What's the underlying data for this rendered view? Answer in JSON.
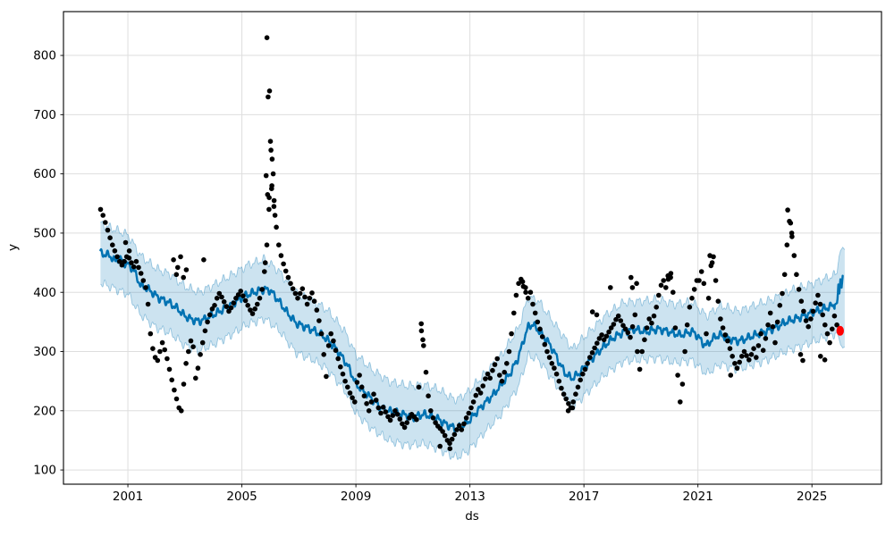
{
  "chart_data": {
    "type": "scatter+line+band (time-series forecast)",
    "title": "",
    "xlabel": "ds",
    "ylabel": "y",
    "grid": true,
    "legend": "none",
    "axes": {
      "xlim": [
        1998.74,
        2027.44
      ],
      "ylim": [
        76,
        874
      ],
      "xticks": [
        2001,
        2005,
        2009,
        2013,
        2017,
        2021,
        2025
      ],
      "xtick_labels": [
        "2001",
        "2005",
        "2009",
        "2013",
        "2017",
        "2021",
        "2025"
      ],
      "yticks": [
        100,
        200,
        300,
        400,
        500,
        600,
        700,
        800
      ],
      "ytick_labels": [
        "100",
        "200",
        "300",
        "400",
        "500",
        "600",
        "700",
        "800"
      ]
    },
    "colors": {
      "observed_points": "#000000",
      "forecast_line": "#0072B2",
      "interval_fill": "#0072B2",
      "interval_fill_opacity": 0.2,
      "interval_edge_opacity": 0.35,
      "latest_point": "#ff0000",
      "grid": "#dedede",
      "spine": "#000000",
      "tick_label": "#000000",
      "background": "#ffffff"
    },
    "observed_monthly": {
      "first_year": 2000,
      "values_by_year": [
        [
          540,
          530,
          518,
          505,
          492,
          480,
          470,
          460,
          452,
          446,
          452,
          460
        ],
        [
          458,
          450,
          443,
          452,
          442,
          432,
          420,
          408,
          380,
          330,
          305,
          290
        ],
        [
          285,
          300,
          315,
          303,
          288,
          270,
          252,
          235,
          220,
          205,
          200,
          245
        ],
        [
          280,
          300,
          318,
          308,
          255,
          272,
          295,
          315,
          335,
          350,
          362,
          372
        ],
        [
          378,
          390,
          398,
          392,
          384,
          376,
          368,
          374,
          382,
          390,
          396,
          402
        ],
        [
          394,
          386,
          378,
          370,
          364,
          372,
          380,
          390,
          405,
          435,
          480,
          560
        ],
        [
          575,
          545,
          510,
          480,
          462,
          448,
          436,
          425,
          415,
          406,
          398,
          390
        ],
        [
          398,
          406,
          392,
          380,
          390,
          399,
          385,
          370,
          352,
          330,
          295,
          258
        ],
        [
          310,
          330,
          318,
          302,
          288,
          274,
          262,
          250,
          240,
          230,
          222,
          215
        ],
        [
          248,
          260,
          240,
          225,
          212,
          200,
          215,
          228,
          218,
          205,
          196,
          206
        ],
        [
          198,
          190,
          184,
          192,
          200,
          194,
          186,
          178,
          172,
          180,
          188,
          194
        ],
        [
          190,
          185,
          240,
          347,
          310,
          265,
          225,
          200,
          188,
          180,
          174,
          170
        ],
        [
          165,
          158,
          150,
          145,
          152,
          160,
          168,
          175,
          168,
          178,
          188,
          196
        ],
        [
          205,
          215,
          226,
          236,
          230,
          242,
          254,
          262,
          255,
          268,
          278,
          288
        ],
        [
          260,
          250,
          265,
          280,
          300,
          330,
          365,
          395,
          415,
          422,
          410,
          400
        ],
        [
          390,
          400,
          380,
          365,
          350,
          338,
          325,
          312,
          300,
          290,
          280,
          272
        ],
        [
          262,
          250,
          238,
          228,
          220,
          212,
          205,
          215,
          228,
          240,
          252,
          262
        ],
        [
          270,
          280,
          290,
          298,
          306,
          314,
          322,
          328,
          320,
          326,
          333,
          340
        ],
        [
          346,
          354,
          360,
          352,
          344,
          338,
          332,
          324,
          342,
          362,
          300,
          270
        ],
        [
          300,
          320,
          340,
          355,
          348,
          360,
          375,
          395,
          412,
          420,
          408,
          422
        ],
        [
          425,
          400,
          340,
          260,
          215,
          245,
          300,
          345,
          375,
          390,
          405,
          420
        ],
        [
          420,
          435,
          415,
          330,
          390,
          445,
          460,
          420,
          385,
          355,
          340,
          328
        ],
        [
          318,
          305,
          292,
          280,
          272,
          282,
          292,
          300,
          293,
          286,
          295,
          305
        ],
        [
          290,
          310,
          330,
          302,
          322,
          345,
          365,
          342,
          315,
          350,
          378,
          398
        ],
        [
          430,
          480,
          520,
          500,
          462,
          430,
          405,
          385,
          368,
          352,
          342,
          355
        ],
        [
          368,
          382,
          395,
          380,
          362,
          345,
          330,
          315,
          338,
          360,
          345,
          336
        ]
      ]
    },
    "observed_outliers": [
      [
        2000.92,
        484
      ],
      [
        2001.05,
        470
      ],
      [
        2002.6,
        455
      ],
      [
        2002.7,
        430
      ],
      [
        2002.75,
        442
      ],
      [
        2002.85,
        460
      ],
      [
        2002.95,
        425
      ],
      [
        2003.05,
        438
      ],
      [
        2003.66,
        455
      ],
      [
        2005.82,
        450
      ],
      [
        2005.85,
        597
      ],
      [
        2005.88,
        830
      ],
      [
        2005.9,
        565
      ],
      [
        2005.92,
        730
      ],
      [
        2005.95,
        540
      ],
      [
        2005.97,
        740
      ],
      [
        2006.0,
        655
      ],
      [
        2006.02,
        640
      ],
      [
        2006.05,
        580
      ],
      [
        2006.06,
        625
      ],
      [
        2006.1,
        600
      ],
      [
        2006.13,
        555
      ],
      [
        2006.16,
        530
      ],
      [
        2011.3,
        335
      ],
      [
        2011.35,
        320
      ],
      [
        2011.95,
        140
      ],
      [
        2012.3,
        136
      ],
      [
        2014.85,
        418
      ],
      [
        2014.95,
        408
      ],
      [
        2016.45,
        200
      ],
      [
        2016.6,
        205
      ],
      [
        2017.3,
        367
      ],
      [
        2017.45,
        362
      ],
      [
        2017.93,
        408
      ],
      [
        2018.65,
        425
      ],
      [
        2018.7,
        408
      ],
      [
        2018.85,
        415
      ],
      [
        2019.95,
        428
      ],
      [
        2020.05,
        432
      ],
      [
        2021.42,
        462
      ],
      [
        2021.5,
        450
      ],
      [
        2022.15,
        260
      ],
      [
        2024.15,
        539
      ],
      [
        2024.25,
        517
      ],
      [
        2024.3,
        494
      ],
      [
        2024.6,
        295
      ],
      [
        2024.68,
        285
      ],
      [
        2025.3,
        292
      ],
      [
        2025.45,
        286
      ]
    ],
    "latest_actual_point": {
      "x": 2025.99,
      "y": 335
    },
    "forecast_line": [
      [
        2000.04,
        466
      ],
      [
        2000.37,
        462
      ],
      [
        2000.55,
        452
      ],
      [
        2000.7,
        458
      ],
      [
        2000.85,
        450
      ],
      [
        2001.0,
        447
      ],
      [
        2001.2,
        438
      ],
      [
        2001.45,
        411
      ],
      [
        2001.7,
        406
      ],
      [
        2001.9,
        398
      ],
      [
        2002.1,
        390
      ],
      [
        2002.3,
        386
      ],
      [
        2002.5,
        381
      ],
      [
        2002.75,
        372
      ],
      [
        2003.0,
        360
      ],
      [
        2003.25,
        354
      ],
      [
        2003.5,
        351
      ],
      [
        2003.75,
        356
      ],
      [
        2004.0,
        362
      ],
      [
        2004.3,
        370
      ],
      [
        2004.6,
        378
      ],
      [
        2004.9,
        388
      ],
      [
        2005.2,
        396
      ],
      [
        2005.5,
        401
      ],
      [
        2005.8,
        405
      ],
      [
        2006.0,
        403
      ],
      [
        2006.3,
        385
      ],
      [
        2006.6,
        365
      ],
      [
        2006.9,
        348
      ],
      [
        2007.2,
        342
      ],
      [
        2007.5,
        336
      ],
      [
        2007.8,
        328
      ],
      [
        2008.0,
        320
      ],
      [
        2008.3,
        305
      ],
      [
        2008.6,
        285
      ],
      [
        2008.8,
        268
      ],
      [
        2009.0,
        245
      ],
      [
        2009.3,
        232
      ],
      [
        2009.6,
        218
      ],
      [
        2009.9,
        204
      ],
      [
        2010.2,
        199
      ],
      [
        2010.5,
        196
      ],
      [
        2010.8,
        192
      ],
      [
        2011.0,
        189
      ],
      [
        2011.2,
        192
      ],
      [
        2011.4,
        194
      ],
      [
        2011.6,
        191
      ],
      [
        2011.9,
        186
      ],
      [
        2012.1,
        179
      ],
      [
        2012.35,
        173
      ],
      [
        2012.55,
        170
      ],
      [
        2012.75,
        175
      ],
      [
        2012.95,
        182
      ],
      [
        2013.2,
        196
      ],
      [
        2013.5,
        212
      ],
      [
        2013.8,
        226
      ],
      [
        2014.1,
        244
      ],
      [
        2014.4,
        262
      ],
      [
        2014.7,
        290
      ],
      [
        2014.9,
        322
      ],
      [
        2015.05,
        342
      ],
      [
        2015.2,
        346
      ],
      [
        2015.4,
        336
      ],
      [
        2015.6,
        325
      ],
      [
        2015.8,
        312
      ],
      [
        2016.0,
        295
      ],
      [
        2016.2,
        275
      ],
      [
        2016.4,
        260
      ],
      [
        2016.6,
        255
      ],
      [
        2016.8,
        262
      ],
      [
        2017.0,
        272
      ],
      [
        2017.2,
        284
      ],
      [
        2017.4,
        294
      ],
      [
        2017.6,
        304
      ],
      [
        2017.8,
        313
      ],
      [
        2018.0,
        322
      ],
      [
        2018.2,
        328
      ],
      [
        2018.4,
        333
      ],
      [
        2018.6,
        336
      ],
      [
        2018.8,
        338
      ],
      [
        2019.0,
        335
      ],
      [
        2019.2,
        333
      ],
      [
        2019.4,
        336
      ],
      [
        2019.6,
        338
      ],
      [
        2019.8,
        336
      ],
      [
        2020.0,
        333
      ],
      [
        2020.2,
        330
      ],
      [
        2020.4,
        328
      ],
      [
        2020.6,
        331
      ],
      [
        2020.8,
        334
      ],
      [
        2021.0,
        326
      ],
      [
        2021.15,
        315
      ],
      [
        2021.3,
        310
      ],
      [
        2021.45,
        318
      ],
      [
        2021.6,
        325
      ],
      [
        2021.8,
        328
      ],
      [
        2022.0,
        324
      ],
      [
        2022.2,
        320
      ],
      [
        2022.4,
        318
      ],
      [
        2022.6,
        320
      ],
      [
        2022.8,
        324
      ],
      [
        2023.0,
        328
      ],
      [
        2023.2,
        331
      ],
      [
        2023.4,
        334
      ],
      [
        2023.6,
        338
      ],
      [
        2023.8,
        342
      ],
      [
        2024.0,
        348
      ],
      [
        2024.2,
        352
      ],
      [
        2024.4,
        355
      ],
      [
        2024.6,
        358
      ],
      [
        2024.8,
        361
      ],
      [
        2025.0,
        366
      ],
      [
        2025.2,
        369
      ],
      [
        2025.4,
        372
      ],
      [
        2025.6,
        375
      ],
      [
        2025.8,
        379
      ],
      [
        2025.88,
        382
      ],
      [
        2025.9,
        390
      ],
      [
        2025.93,
        415
      ],
      [
        2025.96,
        398
      ],
      [
        2026.0,
        422
      ],
      [
        2026.04,
        408
      ],
      [
        2026.08,
        428
      ]
    ],
    "interval_upper": [
      [
        2000.04,
        516
      ],
      [
        2001.0,
        497
      ],
      [
        2001.45,
        462
      ],
      [
        2002.0,
        440
      ],
      [
        2002.5,
        430
      ],
      [
        2003.0,
        410
      ],
      [
        2003.5,
        400
      ],
      [
        2004.0,
        412
      ],
      [
        2004.6,
        428
      ],
      [
        2005.2,
        446
      ],
      [
        2005.8,
        456
      ],
      [
        2006.3,
        436
      ],
      [
        2006.9,
        398
      ],
      [
        2007.5,
        386
      ],
      [
        2008.0,
        370
      ],
      [
        2008.6,
        335
      ],
      [
        2009.0,
        295
      ],
      [
        2009.6,
        268
      ],
      [
        2010.2,
        249
      ],
      [
        2010.8,
        242
      ],
      [
        2011.4,
        244
      ],
      [
        2011.9,
        236
      ],
      [
        2012.35,
        222
      ],
      [
        2012.55,
        219
      ],
      [
        2012.95,
        232
      ],
      [
        2013.5,
        262
      ],
      [
        2014.1,
        294
      ],
      [
        2014.7,
        340
      ],
      [
        2015.05,
        392
      ],
      [
        2015.4,
        386
      ],
      [
        2016.0,
        345
      ],
      [
        2016.6,
        304
      ],
      [
        2017.2,
        334
      ],
      [
        2017.8,
        363
      ],
      [
        2018.4,
        383
      ],
      [
        2019.0,
        385
      ],
      [
        2019.6,
        388
      ],
      [
        2020.2,
        380
      ],
      [
        2020.8,
        384
      ],
      [
        2021.3,
        360
      ],
      [
        2021.8,
        378
      ],
      [
        2022.4,
        368
      ],
      [
        2023.0,
        378
      ],
      [
        2023.6,
        388
      ],
      [
        2024.2,
        402
      ],
      [
        2024.8,
        411
      ],
      [
        2025.4,
        422
      ],
      [
        2025.8,
        429
      ],
      [
        2025.88,
        432
      ],
      [
        2025.95,
        460
      ],
      [
        2026.0,
        470
      ],
      [
        2026.08,
        476
      ],
      [
        2026.15,
        472
      ]
    ],
    "interval_lower": [
      [
        2000.04,
        416
      ],
      [
        2001.0,
        397
      ],
      [
        2001.45,
        362
      ],
      [
        2002.0,
        340
      ],
      [
        2002.5,
        331
      ],
      [
        2003.0,
        310
      ],
      [
        2003.5,
        301
      ],
      [
        2004.0,
        312
      ],
      [
        2004.6,
        328
      ],
      [
        2005.2,
        346
      ],
      [
        2005.8,
        356
      ],
      [
        2006.3,
        336
      ],
      [
        2006.9,
        298
      ],
      [
        2007.5,
        286
      ],
      [
        2008.0,
        270
      ],
      [
        2008.6,
        235
      ],
      [
        2009.0,
        196
      ],
      [
        2009.6,
        168
      ],
      [
        2010.2,
        149
      ],
      [
        2010.8,
        142
      ],
      [
        2011.4,
        144
      ],
      [
        2011.9,
        136
      ],
      [
        2012.35,
        124
      ],
      [
        2012.55,
        121
      ],
      [
        2012.95,
        133
      ],
      [
        2013.5,
        163
      ],
      [
        2014.1,
        194
      ],
      [
        2014.7,
        241
      ],
      [
        2015.05,
        293
      ],
      [
        2015.4,
        287
      ],
      [
        2016.0,
        246
      ],
      [
        2016.6,
        206
      ],
      [
        2017.2,
        235
      ],
      [
        2017.8,
        264
      ],
      [
        2018.4,
        284
      ],
      [
        2019.0,
        286
      ],
      [
        2019.6,
        289
      ],
      [
        2020.2,
        281
      ],
      [
        2020.8,
        285
      ],
      [
        2021.3,
        262
      ],
      [
        2021.8,
        279
      ],
      [
        2022.4,
        269
      ],
      [
        2023.0,
        279
      ],
      [
        2023.6,
        289
      ],
      [
        2024.2,
        303
      ],
      [
        2024.8,
        312
      ],
      [
        2025.4,
        323
      ],
      [
        2025.8,
        330
      ],
      [
        2025.88,
        333
      ],
      [
        2025.95,
        322
      ],
      [
        2026.0,
        312
      ],
      [
        2026.08,
        306
      ],
      [
        2026.15,
        308
      ]
    ]
  }
}
